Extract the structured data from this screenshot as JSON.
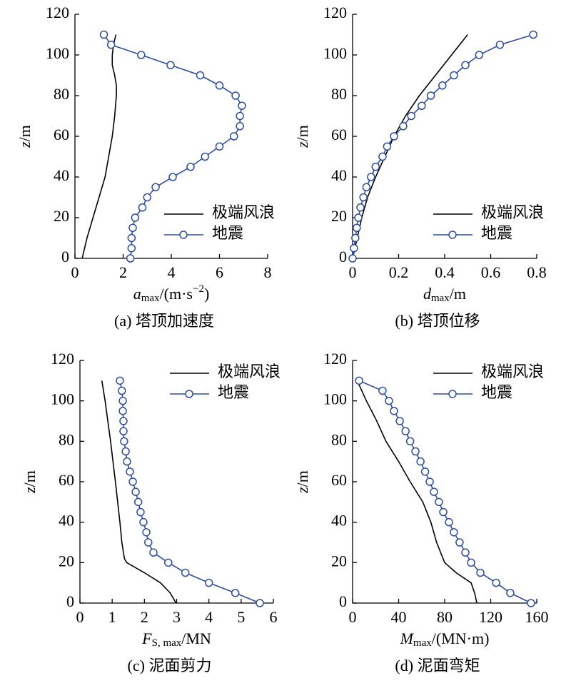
{
  "chart_data": [
    {
      "type": "line",
      "caption": "(a) 塔顶加速度",
      "xlabel": [
        {
          "text": "a",
          "style": "italic"
        },
        {
          "text": "max",
          "style": "sub"
        },
        {
          "text": "/(m·s",
          "style": "normal"
        },
        {
          "text": "−2",
          "style": "sup"
        },
        {
          "text": ")",
          "style": "normal"
        }
      ],
      "ylabel": [
        {
          "text": "z",
          "style": "italic"
        },
        {
          "text": "/m",
          "style": "normal"
        }
      ],
      "xlim": [
        0,
        8
      ],
      "xticks": [
        0,
        2,
        4,
        6,
        8
      ],
      "ylim": [
        0,
        120
      ],
      "yticks": [
        0,
        20,
        40,
        60,
        80,
        100,
        120
      ],
      "legend": "lower right",
      "series": [
        {
          "name": "极端风浪",
          "color": "#000000",
          "marker": "none",
          "x": [
            0.3,
            0.5,
            0.75,
            1.0,
            1.25,
            1.4,
            1.55,
            1.65,
            1.72,
            1.72,
            1.65,
            1.55,
            1.55,
            1.6,
            1.7
          ],
          "y": [
            0,
            10,
            20,
            30,
            40,
            50,
            60,
            70,
            80,
            85,
            90,
            95,
            100,
            105,
            110
          ]
        },
        {
          "name": "地震",
          "color": "#2e4d9c",
          "marker": "circle",
          "x": [
            2.3,
            2.35,
            2.35,
            2.4,
            2.5,
            2.8,
            3.0,
            3.35,
            4.06,
            4.8,
            5.4,
            6.0,
            6.6,
            6.85,
            6.85,
            6.93,
            6.67,
            6.0,
            5.2,
            3.97,
            2.75,
            1.5,
            1.2
          ],
          "y": [
            0,
            5,
            10,
            15,
            20,
            25,
            30,
            35,
            40,
            45,
            50,
            55,
            60,
            65,
            70,
            75,
            80,
            85,
            90,
            95,
            100,
            105,
            110
          ]
        }
      ]
    },
    {
      "type": "line",
      "caption": "(b) 塔顶位移",
      "xlabel": [
        {
          "text": "d",
          "style": "italic"
        },
        {
          "text": "max",
          "style": "sub"
        },
        {
          "text": "/m",
          "style": "normal"
        }
      ],
      "ylabel": [
        {
          "text": "z",
          "style": "italic"
        },
        {
          "text": "/m",
          "style": "normal"
        }
      ],
      "xlim": [
        0,
        0.8
      ],
      "xticks": [
        0,
        0.2,
        0.4,
        0.6,
        0.8
      ],
      "ylim": [
        0,
        120
      ],
      "yticks": [
        0,
        20,
        40,
        60,
        80,
        100,
        120
      ],
      "legend": "lower right",
      "series": [
        {
          "name": "极端风浪",
          "color": "#000000",
          "marker": "none",
          "x": [
            0,
            0.02,
            0.04,
            0.065,
            0.1,
            0.14,
            0.18,
            0.23,
            0.29,
            0.36,
            0.43,
            0.5
          ],
          "y": [
            0,
            10,
            20,
            30,
            40,
            50,
            60,
            70,
            80,
            90,
            100,
            110
          ]
        },
        {
          "name": "地震",
          "color": "#2e4d9c",
          "marker": "circle",
          "x": [
            0,
            0.006,
            0.012,
            0.018,
            0.025,
            0.034,
            0.047,
            0.06,
            0.08,
            0.1,
            0.13,
            0.15,
            0.18,
            0.22,
            0.255,
            0.3,
            0.34,
            0.39,
            0.44,
            0.49,
            0.55,
            0.64,
            0.785
          ],
          "y": [
            0,
            5,
            10,
            15,
            20,
            25,
            30,
            35,
            40,
            45,
            50,
            55,
            60,
            65,
            70,
            75,
            80,
            85,
            90,
            95,
            100,
            105,
            110
          ]
        }
      ]
    },
    {
      "type": "line",
      "caption": "(c) 泥面剪力",
      "xlabel": [
        {
          "text": "F",
          "style": "italic"
        },
        {
          "text": "S, max",
          "style": "sub"
        },
        {
          "text": "/MN",
          "style": "normal"
        }
      ],
      "ylabel": [
        {
          "text": "z",
          "style": "italic"
        },
        {
          "text": "/m",
          "style": "normal"
        }
      ],
      "xlim": [
        0,
        6
      ],
      "xticks": [
        0,
        1,
        2,
        3,
        4,
        5,
        6
      ],
      "ylim": [
        0,
        120
      ],
      "yticks": [
        0,
        20,
        40,
        60,
        80,
        100,
        120
      ],
      "legend": "upper right",
      "series": [
        {
          "name": "极端风浪",
          "color": "#000000",
          "marker": "none",
          "x": [
            2.98,
            2.8,
            2.5,
            2.0,
            1.45,
            1.38,
            1.3,
            1.24,
            1.1,
            0.95,
            0.78,
            0.68
          ],
          "y": [
            0,
            5,
            10,
            15,
            20,
            22,
            30,
            40,
            60,
            80,
            100,
            110
          ]
        },
        {
          "name": "地震",
          "color": "#2e4d9c",
          "marker": "circle",
          "x": [
            5.58,
            4.82,
            4.0,
            3.27,
            2.74,
            2.28,
            2.12,
            2.06,
            1.97,
            1.88,
            1.81,
            1.73,
            1.64,
            1.55,
            1.46,
            1.42,
            1.37,
            1.35,
            1.35,
            1.33,
            1.33,
            1.3,
            1.24
          ],
          "y": [
            0,
            5,
            10,
            15,
            20,
            25,
            30,
            35,
            40,
            45,
            50,
            55,
            60,
            65,
            70,
            75,
            80,
            85,
            90,
            95,
            100,
            105,
            110
          ]
        }
      ]
    },
    {
      "type": "line",
      "caption": "(d) 泥面弯矩",
      "xlabel": [
        {
          "text": "M",
          "style": "italic"
        },
        {
          "text": "max",
          "style": "sub"
        },
        {
          "text": "/(MN·m)",
          "style": "normal"
        }
      ],
      "ylabel": [
        {
          "text": "z",
          "style": "italic"
        },
        {
          "text": "/m",
          "style": "normal"
        }
      ],
      "xlim": [
        0,
        160
      ],
      "xticks": [
        0,
        40,
        80,
        120,
        160
      ],
      "ylim": [
        0,
        120
      ],
      "yticks": [
        0,
        20,
        40,
        60,
        80,
        100,
        120
      ],
      "legend": "upper right",
      "series": [
        {
          "name": "极端风浪",
          "color": "#000000",
          "marker": "none",
          "x": [
            108,
            106,
            103,
            90,
            80,
            73,
            68,
            61,
            50,
            40,
            29,
            21,
            12,
            4
          ],
          "y": [
            0,
            5,
            10,
            15,
            20,
            30,
            40,
            50,
            60,
            70,
            80,
            90,
            100,
            110
          ]
        },
        {
          "name": "地震",
          "color": "#2e4d9c",
          "marker": "circle",
          "x": [
            155,
            137,
            124.7,
            111,
            103,
            98,
            93,
            88,
            83.7,
            78.8,
            75,
            70.7,
            67,
            63,
            59,
            54.6,
            50,
            46,
            41,
            36,
            31.6,
            26,
            5.6
          ],
          "y": [
            0,
            5,
            10,
            15,
            20,
            25,
            30,
            35,
            40,
            45,
            50,
            55,
            60,
            65,
            70,
            75,
            80,
            85,
            90,
            95,
            100,
            105,
            110
          ]
        }
      ]
    }
  ]
}
